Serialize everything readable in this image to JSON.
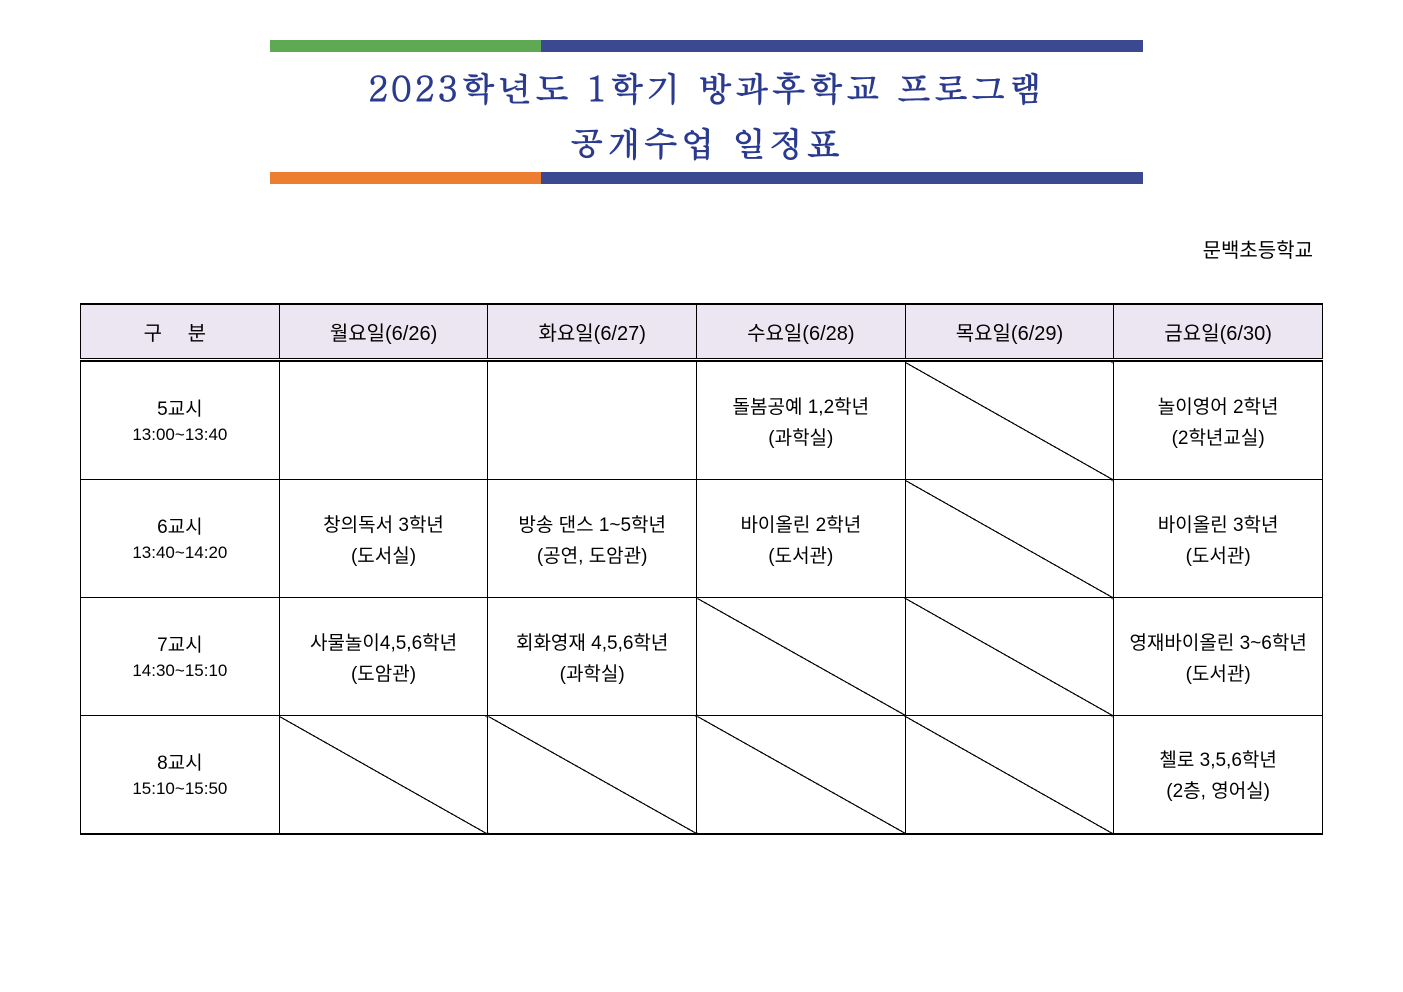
{
  "header": {
    "title_line1": "2023학년도 1학기 방과후학교 프로그램",
    "title_line2": "공개수업 일정표",
    "top_bar_left_color": "#5fa854",
    "top_bar_right_color": "#3b4990",
    "bottom_bar_left_color": "#ed7d31",
    "bottom_bar_right_color": "#3b4990",
    "title_color": "#2a3a8f"
  },
  "school_name": "문백초등학교",
  "table": {
    "type": "table",
    "header_bg": "#ece6f2",
    "border_color": "#000000",
    "columns": [
      "구  분",
      "월요일(6/26)",
      "화요일(6/27)",
      "수요일(6/28)",
      "목요일(6/29)",
      "금요일(6/30)"
    ],
    "periods": [
      {
        "label": "5교시",
        "time": "13:00~13:40"
      },
      {
        "label": "6교시",
        "time": "13:40~14:20"
      },
      {
        "label": "7교시",
        "time": "14:30~15:10"
      },
      {
        "label": "8교시",
        "time": "15:10~15:50"
      }
    ],
    "cells": {
      "r0": {
        "mon": {
          "empty": true,
          "diagonal": false
        },
        "tue": {
          "empty": true,
          "diagonal": false
        },
        "wed": {
          "line1": "돌봄공예 1,2학년",
          "line2": "(과학실)",
          "diagonal": false
        },
        "thu": {
          "empty": true,
          "diagonal": true
        },
        "fri": {
          "line1": "놀이영어 2학년",
          "line2": "(2학년교실)",
          "diagonal": false
        }
      },
      "r1": {
        "mon": {
          "line1": "창의독서 3학년",
          "line2": "(도서실)",
          "diagonal": false
        },
        "tue": {
          "line1": "방송 댄스 1~5학년",
          "line2": "(공연, 도암관)",
          "diagonal": false
        },
        "wed": {
          "line1": "바이올린 2학년",
          "line2": "(도서관)",
          "diagonal": false
        },
        "thu": {
          "empty": true,
          "diagonal": true
        },
        "fri": {
          "line1": "바이올린 3학년",
          "line2": "(도서관)",
          "diagonal": false
        }
      },
      "r2": {
        "mon": {
          "line1": "사물놀이4,5,6학년",
          "line2": "(도암관)",
          "diagonal": false
        },
        "tue": {
          "line1": "회화영재 4,5,6학년",
          "line2": "(과학실)",
          "diagonal": false
        },
        "wed": {
          "empty": true,
          "diagonal": true
        },
        "thu": {
          "empty": true,
          "diagonal": true
        },
        "fri": {
          "line1": "영재바이올린 3~6학년",
          "line2": "(도서관)",
          "diagonal": false
        }
      },
      "r3": {
        "mon": {
          "empty": true,
          "diagonal": true
        },
        "tue": {
          "empty": true,
          "diagonal": true
        },
        "wed": {
          "empty": true,
          "diagonal": true
        },
        "thu": {
          "empty": true,
          "diagonal": true
        },
        "fri": {
          "line1": "첼로 3,5,6학년",
          "line2": "(2층, 영어실)",
          "diagonal": false
        }
      }
    }
  }
}
